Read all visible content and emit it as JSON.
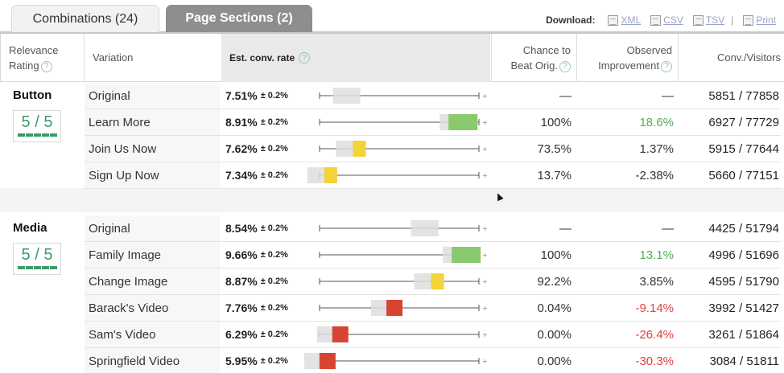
{
  "tabs": [
    {
      "label": "Combinations (24)",
      "active": false
    },
    {
      "label": "Page Sections (2)",
      "active": true
    }
  ],
  "download": {
    "label": "Download:",
    "links": [
      {
        "label": "XML",
        "icon": "xml-file-icon"
      },
      {
        "label": "CSV",
        "icon": "csv-file-icon"
      },
      {
        "label": "TSV",
        "icon": "tsv-file-icon"
      }
    ],
    "separator": "|",
    "print": {
      "label": "Print",
      "icon": "printer-icon"
    }
  },
  "header": {
    "relevance_line1": "Relevance",
    "relevance_line2": "Rating",
    "variation": "Variation",
    "est": "Est. conv. rate",
    "chance_line1": "Chance to",
    "chance_line2": "Beat Orig.",
    "impr_line1": "Observed",
    "impr_line2": "Improvement",
    "conv": "Conv./Visitors",
    "help_glyph": "?"
  },
  "colors": {
    "green": "#8bc96e",
    "yellow": "#f2d33a",
    "red": "#d84432",
    "gray": "#dedede"
  },
  "sections": [
    {
      "name": "Button",
      "rating": "5 / 5",
      "rows": [
        {
          "variation": "Original",
          "rate": "7.51%",
          "pm": "± 0.2%",
          "chance": "—",
          "improvement": "—",
          "impr_sign": "none",
          "conv": "5851 / 77858",
          "bar_pos": 0.17,
          "bar_color": "gray"
        },
        {
          "variation": "Learn More",
          "rate": "8.91%",
          "pm": "± 0.2%",
          "chance": "100%",
          "improvement": "18.6%",
          "impr_sign": "pos",
          "conv": "6927 / 77729",
          "bar_pos": 0.9,
          "bar_color": "green"
        },
        {
          "variation": "Join Us Now",
          "rate": "7.62%",
          "pm": "± 0.2%",
          "chance": "73.5%",
          "improvement": "1.37%",
          "impr_sign": "none",
          "conv": "5915 / 77644",
          "bar_pos": 0.25,
          "bar_color": "yellow"
        },
        {
          "variation": "Sign Up Now",
          "rate": "7.34%",
          "pm": "± 0.2%",
          "chance": "13.7%",
          "improvement": "-2.38%",
          "impr_sign": "none",
          "conv": "5660 / 77151",
          "bar_pos": 0.07,
          "bar_color": "yellow"
        }
      ]
    },
    {
      "name": "Media",
      "rating": "5 / 5",
      "rows": [
        {
          "variation": "Original",
          "rate": "8.54%",
          "pm": "± 0.2%",
          "chance": "—",
          "improvement": "—",
          "impr_sign": "none",
          "conv": "4425 / 51794",
          "bar_pos": 0.66,
          "bar_color": "gray"
        },
        {
          "variation": "Family Image",
          "rate": "9.66%",
          "pm": "± 0.2%",
          "chance": "100%",
          "improvement": "13.1%",
          "impr_sign": "pos",
          "conv": "4996 / 51696",
          "bar_pos": 0.92,
          "bar_color": "green"
        },
        {
          "variation": "Change Image",
          "rate": "8.87%",
          "pm": "± 0.2%",
          "chance": "92.2%",
          "improvement": "3.85%",
          "impr_sign": "none",
          "conv": "4595 / 51790",
          "bar_pos": 0.74,
          "bar_color": "yellow"
        },
        {
          "variation": "Barack's Video",
          "rate": "7.76%",
          "pm": "± 0.2%",
          "chance": "0.04%",
          "improvement": "-9.14%",
          "impr_sign": "neg",
          "conv": "3992 / 51427",
          "bar_pos": 0.47,
          "bar_color": "red"
        },
        {
          "variation": "Sam's Video",
          "rate": "6.29%",
          "pm": "± 0.2%",
          "chance": "0.00%",
          "improvement": "-26.4%",
          "impr_sign": "neg",
          "conv": "3261 / 51864",
          "bar_pos": 0.13,
          "bar_color": "red"
        },
        {
          "variation": "Springfield Video",
          "rate": "5.95%",
          "pm": "± 0.2%",
          "chance": "0.00%",
          "improvement": "-30.3%",
          "impr_sign": "neg",
          "conv": "3084 / 51811",
          "bar_pos": 0.05,
          "bar_color": "red"
        }
      ]
    }
  ]
}
